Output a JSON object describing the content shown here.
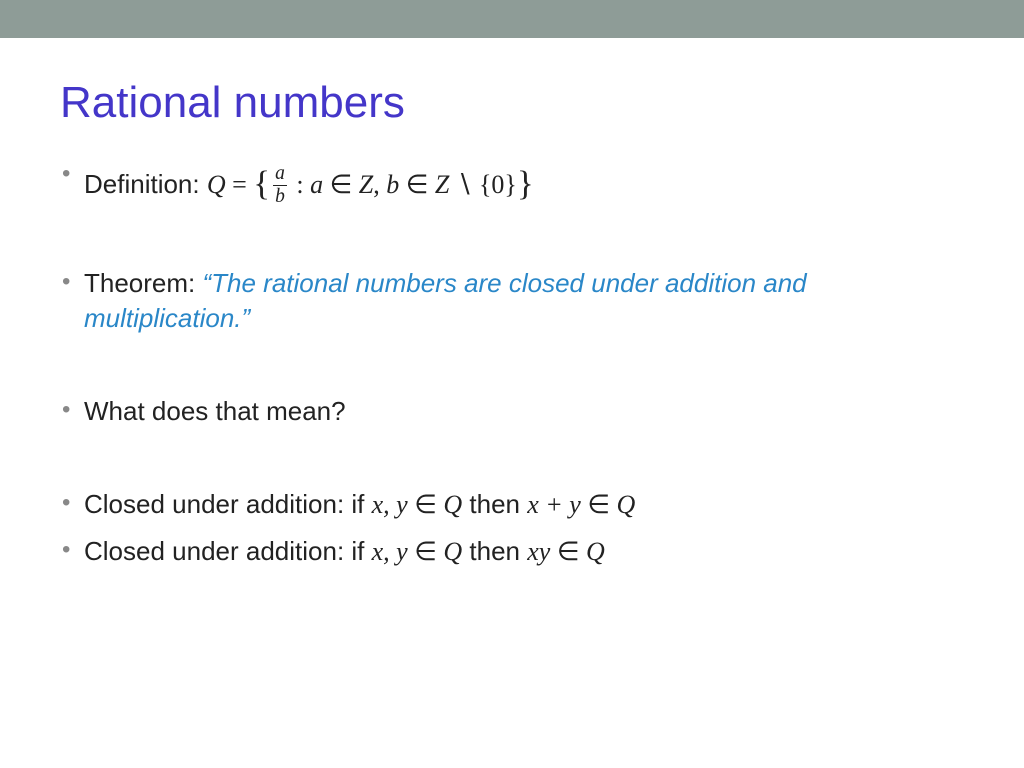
{
  "layout": {
    "top_bar_color": "#8e9c97",
    "title_color": "#4436c9",
    "theorem_color": "#2a87c8",
    "body_text_color": "#222222",
    "bullet_color": "#888888",
    "background_color": "#ffffff",
    "title_fontsize": 44,
    "body_fontsize": 26
  },
  "title": "Rational numbers",
  "bullets": {
    "b1_label": "Definition: ",
    "b1_Q": "Q",
    "b1_eq": " = ",
    "b1_lb": "{",
    "b1_num": "a",
    "b1_den": "b",
    "b1_colon": " : ",
    "b1_a": "a",
    "b1_in1": " ∈ ",
    "b1_Z1": "Z",
    "b1_comma": ", ",
    "b1_b": "b",
    "b1_in2": " ∈ ",
    "b1_Z2": "Z",
    "b1_setminus": " ∖ ",
    "b1_zero": "{0}",
    "b1_rb": "}",
    "b2_label": "Theorem: ",
    "b2_text": "“The rational numbers are closed under addition and multiplication.”",
    "b3": "What does that mean?",
    "b4_label": "Closed under addition: if ",
    "b4_xy": "x, y",
    "b4_in1": " ∈ ",
    "b4_Q1": "Q",
    "b4_then": " then ",
    "b4_xplusy": "x + y",
    "b4_in2": " ∈ ",
    "b4_Q2": "Q",
    "b5_label": "Closed under addition: if ",
    "b5_xy": "x, y",
    "b5_in1": " ∈ ",
    "b5_Q1": "Q",
    "b5_then": " then ",
    "b5_xyprod": "xy",
    "b5_in2": " ∈ ",
    "b5_Q2": "Q"
  }
}
